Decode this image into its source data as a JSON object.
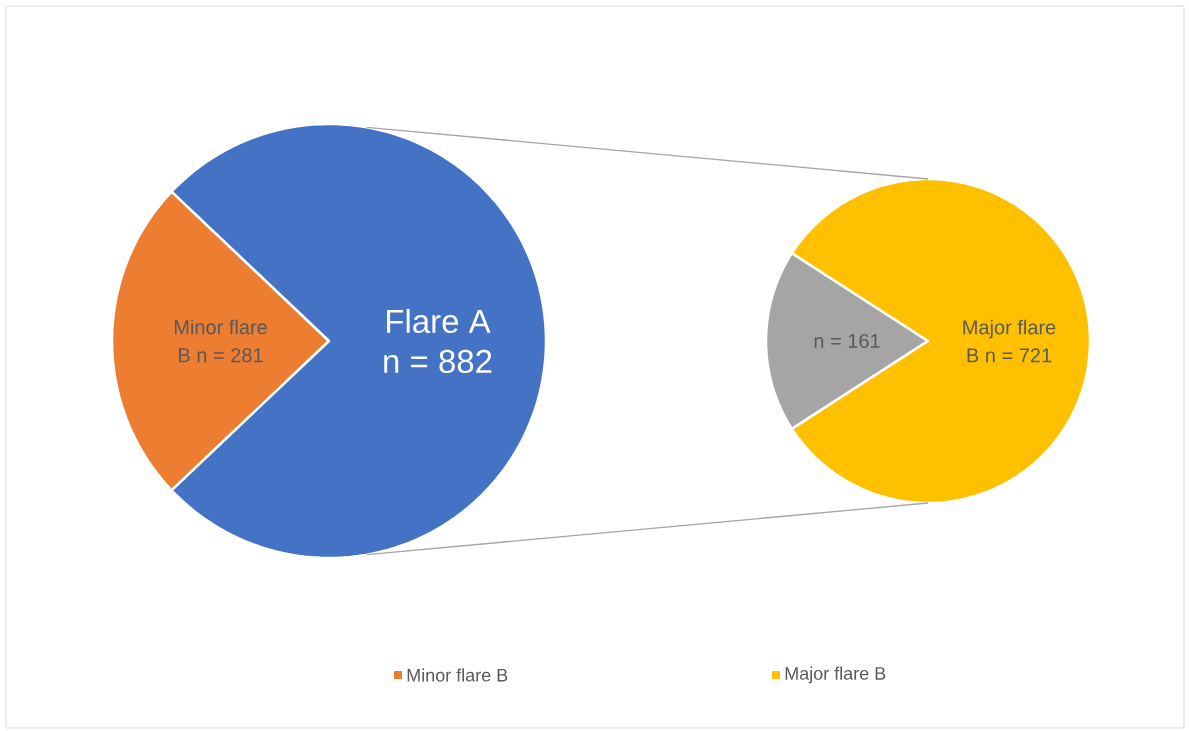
{
  "chart_data": [
    {
      "type": "pie",
      "categories": [
        "Minor flare B",
        null
      ],
      "values": [
        281,
        882
      ],
      "colors": [
        "#ed7d31",
        "#4472c4"
      ],
      "value_labels": [
        "Minor flare B n = 281",
        "Flare A n = 882"
      ],
      "legend": "bottom"
    },
    {
      "type": "pie",
      "categories": [
        null,
        "Major flare B"
      ],
      "values": [
        161,
        721
      ],
      "colors": [
        "#a5a5a5",
        "#ffc000"
      ],
      "value_labels": [
        "n = 161",
        "Major flare B n = 721"
      ],
      "legend": "bottom"
    }
  ]
}
